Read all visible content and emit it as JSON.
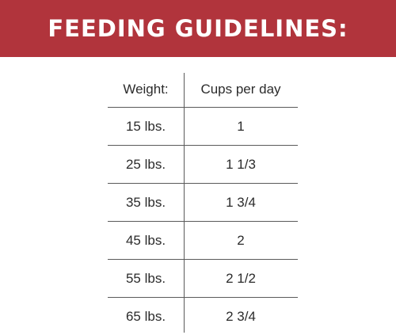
{
  "banner": {
    "title": "FEEDING GUIDELINES:",
    "color": "#b1343c"
  },
  "table": {
    "headers": {
      "weight": "Weight:",
      "cups": "Cups per day"
    },
    "rows": [
      {
        "weight": "15 lbs.",
        "cups": "1"
      },
      {
        "weight": "25 lbs.",
        "cups": "1 1/3"
      },
      {
        "weight": "35 lbs.",
        "cups": "1 3/4"
      },
      {
        "weight": "45 lbs.",
        "cups": "2"
      },
      {
        "weight": "55 lbs.",
        "cups": "2 1/2"
      },
      {
        "weight": "65 lbs.",
        "cups": "2 3/4"
      }
    ]
  }
}
